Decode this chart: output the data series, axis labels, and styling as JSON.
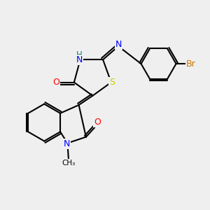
{
  "bg_color": "#efefef",
  "atom_colors": {
    "N": "#0000ff",
    "O": "#ff0000",
    "S": "#cccc00",
    "Br": "#cc7700",
    "C": "#000000",
    "H": "#008080"
  }
}
